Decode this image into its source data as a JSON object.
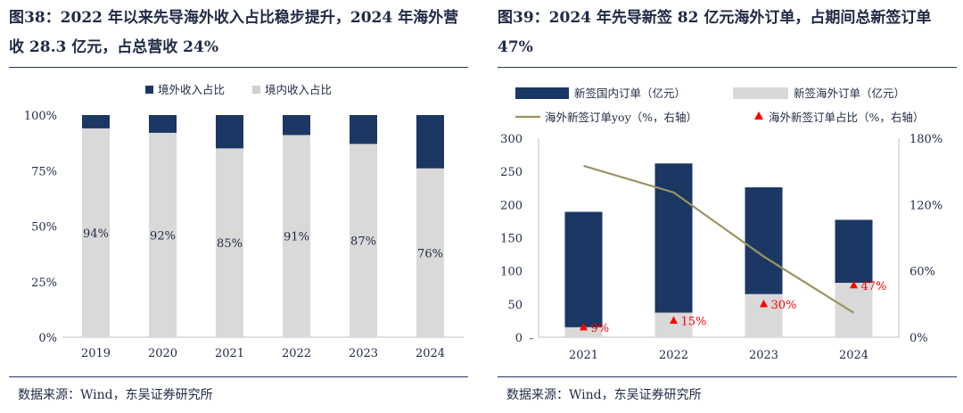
{
  "colors": {
    "navy": "#1b3764",
    "gray": "#d9d9d9",
    "line": "#9c9461",
    "red": "#ff0000",
    "text": "#1f2a44",
    "rule": "#1f3864"
  },
  "left": {
    "title": "图38：2022 年以来先导海外收入占比稳步提升，2024 年海外营收 28.3 亿元，占总营收 24%",
    "source": "数据来源：Wind，东吴证券研究所",
    "chart_data": {
      "type": "bar",
      "stacked": true,
      "categories": [
        "2019",
        "2020",
        "2021",
        "2022",
        "2023",
        "2024"
      ],
      "series": [
        {
          "name": "境外收入占比",
          "values": [
            6,
            8,
            15,
            9,
            13,
            24
          ]
        },
        {
          "name": "境内收入占比",
          "values": [
            94,
            92,
            85,
            91,
            87,
            76
          ]
        }
      ],
      "data_labels": [
        "94%",
        "92%",
        "85%",
        "91%",
        "87%",
        "76%"
      ],
      "y_ticks": [
        "0%",
        "25%",
        "50%",
        "75%",
        "100%"
      ],
      "ylim": [
        0,
        100
      ],
      "legend": "top-left",
      "grid": false
    }
  },
  "right": {
    "title": "图39：2024 年先导新签 82 亿元海外订单，占期间总新签订单 47%",
    "source": "数据来源：Wind，东吴证券研究所",
    "legend": [
      {
        "label": "新签国内订单（亿元）",
        "kind": "bar-navy"
      },
      {
        "label": "新签海外订单（亿元）",
        "kind": "bar-gray"
      },
      {
        "label": "海外新签订单yoy（%，右轴）",
        "kind": "line"
      },
      {
        "label": "海外新签订单占比（%，右轴）",
        "kind": "marker"
      }
    ],
    "chart_data": {
      "type": "bar",
      "stacked": true,
      "categories": [
        "2021",
        "2022",
        "2023",
        "2024"
      ],
      "series": [
        {
          "name": "新签海外订单（亿元）",
          "values": [
            15,
            37,
            65,
            82
          ],
          "axis": "left"
        },
        {
          "name": "新签国内订单（亿元）",
          "values": [
            174,
            225,
            161,
            95
          ],
          "axis": "left"
        },
        {
          "name": "海外新签订单yoy（%，右轴）",
          "type": "line",
          "values": [
            155,
            131,
            73,
            22
          ],
          "axis": "right"
        },
        {
          "name": "海外新签订单占比（%，右轴）",
          "type": "marker",
          "values": [
            9,
            15,
            30,
            47
          ],
          "axis": "right"
        }
      ],
      "marker_labels": [
        "9%",
        "15%",
        "30%",
        "47%"
      ],
      "y_left_ticks": [
        "0",
        "50",
        "100",
        "150",
        "200",
        "250",
        "300"
      ],
      "y_right_ticks": [
        "0%",
        "60%",
        "120%",
        "180%"
      ],
      "ylim_left": [
        0,
        300
      ],
      "ylim_right": [
        0,
        180
      ],
      "legend": "top",
      "grid": false
    }
  }
}
